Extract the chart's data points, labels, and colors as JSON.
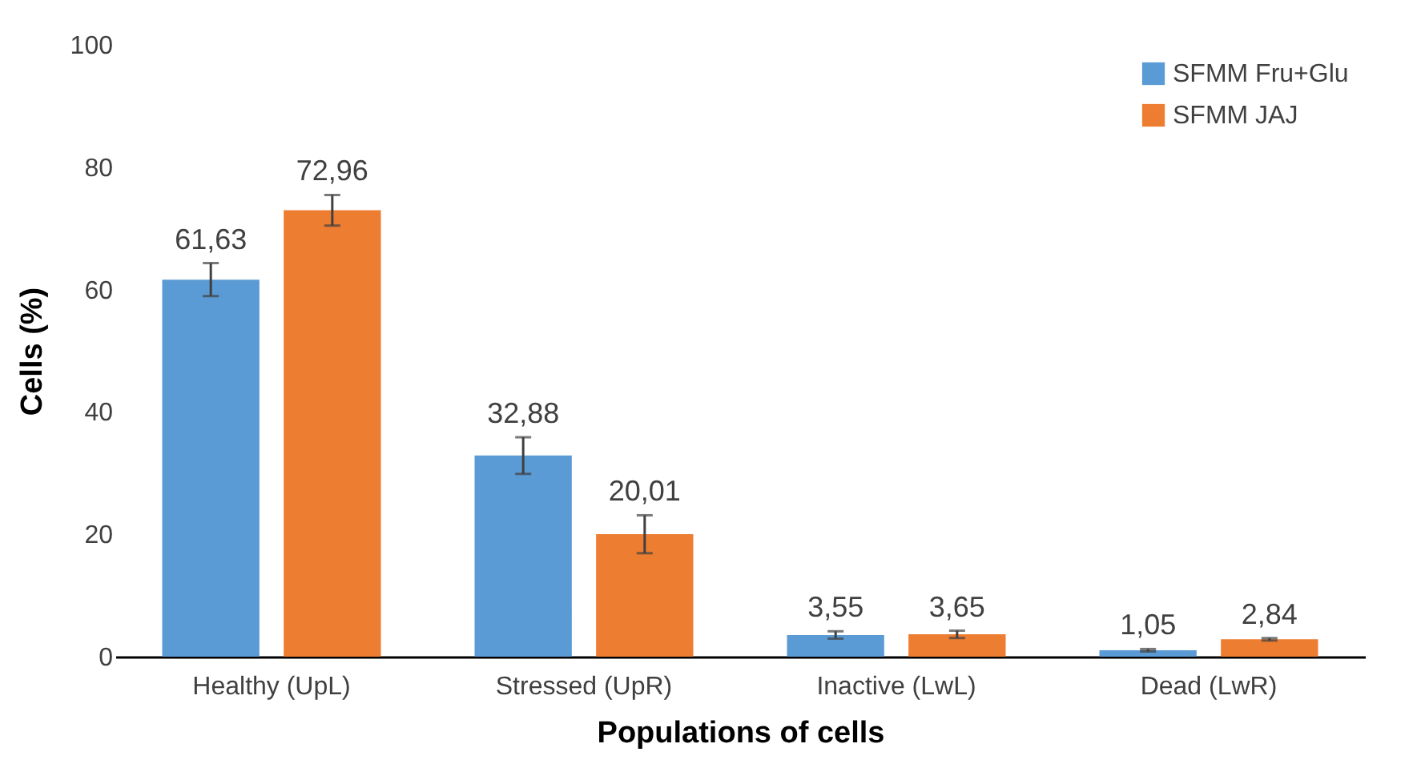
{
  "chart_data": {
    "type": "bar",
    "xlabel": "Populations of cells",
    "ylabel": "Cells (%)",
    "categories": [
      "Healthy (UpL)",
      "Stressed (UpR)",
      "Inactive (LwL)",
      "Dead (LwR)"
    ],
    "series": [
      {
        "name": "SFMM Fru+Glu",
        "color": "#5b9bd5",
        "values": [
          61.63,
          32.88,
          3.55,
          1.05
        ],
        "errors": [
          2.7,
          3.0,
          0.6,
          0.2
        ],
        "value_labels": [
          "61,63",
          "32,88",
          "3,55",
          "1,05"
        ]
      },
      {
        "name": "SFMM JAJ",
        "color": "#ed7d31",
        "values": [
          72.96,
          20.01,
          3.65,
          2.84
        ],
        "errors": [
          2.5,
          3.1,
          0.6,
          0.2
        ],
        "value_labels": [
          "72,96",
          "20,01",
          "3,65",
          "2,84"
        ]
      }
    ],
    "ylim": [
      0,
      100
    ],
    "yticks": [
      0,
      20,
      40,
      60,
      80,
      100
    ],
    "grid": false,
    "legend": "top right"
  }
}
